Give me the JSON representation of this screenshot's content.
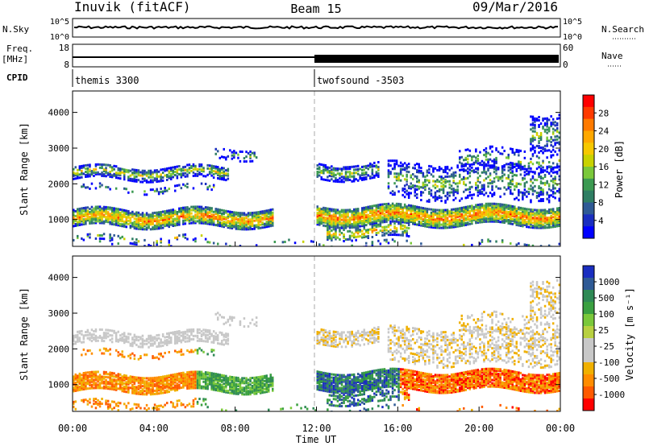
{
  "header": {
    "station": "Inuvik (fitACF)",
    "beam": "Beam 15",
    "date": "09/Mar/2016"
  },
  "top_panels": {
    "nsky_label": "N.Sky",
    "nsky_ticks": [
      "10^5",
      "10^0"
    ],
    "nsearch_label": "N.Search",
    "nsearch_ticks": [
      "10^5",
      "10^0"
    ],
    "freq_label": "Freq.",
    "freq_unit": "[MHz]",
    "freq_ticks": [
      "18",
      "8"
    ],
    "nave_label": "Nave",
    "nave_ticks": [
      "60",
      "0"
    ],
    "cpid_label": "CPID",
    "cpid_segments": [
      {
        "name": "themis 3300",
        "start_hour": 0
      },
      {
        "name": "twofsound -3503",
        "start_hour": 12
      }
    ]
  },
  "chart_data": [
    {
      "type": "heatmap",
      "name": "power",
      "ylabel": "Slant Range [km]",
      "yticks": [
        "4000",
        "3000",
        "2000",
        "1000"
      ],
      "colorbar_label": "Power [dB]",
      "colorbar_ticks": [
        "28",
        "24",
        "20",
        "16",
        "12",
        "8",
        "4"
      ],
      "colorbar_colors": [
        "#ff0000",
        "#ff3a00",
        "#ff7a00",
        "#ffa800",
        "#f6c800",
        "#c8d200",
        "#7ac83a",
        "#3c9a52",
        "#2f7e63",
        "#2f5a95",
        "#1a2ec0",
        "#0000ff"
      ],
      "bands_km": [
        {
          "from_hour": 0.0,
          "to_hour": 9.8,
          "range_km": 1050,
          "level": "high"
        },
        {
          "from_hour": 0.0,
          "to_hour": 7.8,
          "range_km": 2350,
          "level": "mid"
        },
        {
          "from_hour": 12.0,
          "to_hour": 24.0,
          "range_km": 1000,
          "level": "high"
        },
        {
          "from_hour": 12.0,
          "to_hour": 24.0,
          "range_km": 2350,
          "level": "mid"
        }
      ]
    },
    {
      "type": "heatmap",
      "name": "velocity",
      "ylabel": "Slant Range [km]",
      "yticks": [
        "4000",
        "3000",
        "2000",
        "1000"
      ],
      "colorbar_label": "Velocity [m s⁻¹]",
      "colorbar_ticks": [
        "1000",
        "500",
        "100",
        "25",
        "-25",
        "-100",
        "-500",
        "-1000"
      ],
      "colorbar_colors": [
        "#1a2ec0",
        "#2f5a95",
        "#2f8a55",
        "#3aa040",
        "#7ac83a",
        "#b8d040",
        "#c8c8c8",
        "#c8c8c8",
        "#f0b000",
        "#ff8c00",
        "#ff5a00",
        "#ff0000"
      ],
      "xlabel": "Time UT",
      "xticks": [
        "00:00",
        "04:00",
        "08:00",
        "12:00",
        "16:00",
        "20:00",
        "00:00"
      ]
    }
  ]
}
